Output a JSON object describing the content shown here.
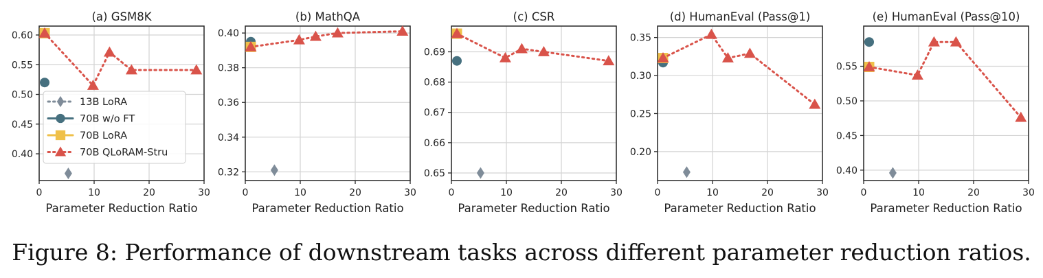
{
  "caption": "Figure 8: Performance of downstream tasks across different parameter reduction ratios.",
  "colors": {
    "13B LoRA": "#7f8c99",
    "70B w/o FT": "#46707f",
    "70B LoRA": "#efc04a",
    "70B QLoRAM-Stru": "#d9534a"
  },
  "legend": {
    "placement": "lower-left of panel (a)",
    "entries": [
      "13B LoRA",
      "70B w/o FT",
      "70B LoRA",
      "70B QLoRAM-Stru"
    ]
  },
  "chart_data": [
    {
      "type": "line",
      "title": "(a) GSM8K",
      "xlabel": "Parameter Reduction Ratio",
      "ylabel": "",
      "xlim": [
        0,
        30
      ],
      "ylim": [
        0.355,
        0.615
      ],
      "xticks": [
        0,
        10,
        20,
        30
      ],
      "yticks": [
        0.4,
        0.45,
        0.5,
        0.55,
        0.6
      ],
      "yfmt": 2,
      "grid": true,
      "series": [
        {
          "name": "13B LoRA",
          "marker": "diamond",
          "points": [
            [
              5.3,
              0.367
            ]
          ]
        },
        {
          "name": "70B w/o FT",
          "marker": "circle",
          "points": [
            [
              1,
              0.52
            ]
          ]
        },
        {
          "name": "70B LoRA",
          "marker": "square",
          "points": [
            [
              1,
              0.603
            ]
          ]
        },
        {
          "name": "70B QLoRAM-Stru",
          "marker": "triangle",
          "points": [
            [
              1,
              0.603
            ],
            [
              9.8,
              0.515
            ],
            [
              12.8,
              0.571
            ],
            [
              16.8,
              0.541
            ],
            [
              28.6,
              0.541
            ]
          ]
        }
      ]
    },
    {
      "type": "line",
      "title": "(b) MathQA",
      "xlabel": "Parameter Reduction Ratio",
      "ylabel": "",
      "xlim": [
        0,
        30
      ],
      "ylim": [
        0.315,
        0.404
      ],
      "xticks": [
        0,
        10,
        20,
        30
      ],
      "yticks": [
        0.32,
        0.34,
        0.36,
        0.38,
        0.4
      ],
      "yfmt": 2,
      "grid": true,
      "series": [
        {
          "name": "13B LoRA",
          "marker": "diamond",
          "points": [
            [
              5.3,
              0.321
            ]
          ]
        },
        {
          "name": "70B w/o FT",
          "marker": "circle",
          "points": [
            [
              1,
              0.395
            ]
          ]
        },
        {
          "name": "70B LoRA",
          "marker": "square",
          "points": [
            [
              1,
              0.392
            ]
          ]
        },
        {
          "name": "70B QLoRAM-Stru",
          "marker": "triangle",
          "points": [
            [
              1,
              0.392
            ],
            [
              9.8,
              0.396
            ],
            [
              12.8,
              0.398
            ],
            [
              16.8,
              0.4
            ],
            [
              28.6,
              0.401
            ]
          ]
        }
      ]
    },
    {
      "type": "line",
      "title": "(c) CSR",
      "xlabel": "Parameter Reduction Ratio",
      "ylabel": "",
      "xlim": [
        0,
        30
      ],
      "ylim": [
        0.6475,
        0.6985
      ],
      "xticks": [
        0,
        10,
        20,
        30
      ],
      "yticks": [
        0.65,
        0.66,
        0.67,
        0.68,
        0.69
      ],
      "yfmt": 2,
      "grid": true,
      "series": [
        {
          "name": "13B LoRA",
          "marker": "diamond",
          "points": [
            [
              5.3,
              0.65
            ]
          ]
        },
        {
          "name": "70B w/o FT",
          "marker": "circle",
          "points": [
            [
              1,
              0.687
            ]
          ]
        },
        {
          "name": "70B LoRA",
          "marker": "square",
          "points": [
            [
              1,
              0.696
            ]
          ]
        },
        {
          "name": "70B QLoRAM-Stru",
          "marker": "triangle",
          "points": [
            [
              1,
              0.696
            ],
            [
              9.8,
              0.688
            ],
            [
              12.8,
              0.691
            ],
            [
              16.8,
              0.69
            ],
            [
              28.6,
              0.687
            ]
          ]
        }
      ]
    },
    {
      "type": "line",
      "title": "(d) HumanEval (Pass@1)",
      "xlabel": "Parameter Reduction Ratio",
      "ylabel": "",
      "xlim": [
        0,
        30
      ],
      "ylim": [
        0.162,
        0.365
      ],
      "xticks": [
        0,
        10,
        20,
        30
      ],
      "yticks": [
        0.2,
        0.25,
        0.3,
        0.35
      ],
      "yfmt": 2,
      "grid": true,
      "series": [
        {
          "name": "13B LoRA",
          "marker": "diamond",
          "points": [
            [
              5.3,
              0.173
            ]
          ]
        },
        {
          "name": "70B w/o FT",
          "marker": "circle",
          "points": [
            [
              1,
              0.317
            ]
          ]
        },
        {
          "name": "70B LoRA",
          "marker": "square",
          "points": [
            [
              1,
              0.323
            ]
          ]
        },
        {
          "name": "70B QLoRAM-Stru",
          "marker": "triangle",
          "points": [
            [
              1,
              0.323
            ],
            [
              9.8,
              0.354
            ],
            [
              12.8,
              0.323
            ],
            [
              16.8,
              0.329
            ],
            [
              28.6,
              0.262
            ]
          ]
        }
      ]
    },
    {
      "type": "line",
      "title": "(e) HumanEval (Pass@10)",
      "xlabel": "Parameter Reduction Ratio",
      "ylabel": "",
      "xlim": [
        0,
        30
      ],
      "ylim": [
        0.385,
        0.608
      ],
      "xticks": [
        0,
        10,
        20,
        30
      ],
      "yticks": [
        0.4,
        0.45,
        0.5,
        0.55
      ],
      "yfmt": 2,
      "grid": true,
      "series": [
        {
          "name": "13B LoRA",
          "marker": "diamond",
          "points": [
            [
              5.3,
              0.396
            ]
          ]
        },
        {
          "name": "70B w/o FT",
          "marker": "circle",
          "points": [
            [
              1,
              0.585
            ]
          ]
        },
        {
          "name": "70B LoRA",
          "marker": "square",
          "points": [
            [
              1,
              0.549
            ]
          ]
        },
        {
          "name": "70B QLoRAM-Stru",
          "marker": "triangle",
          "points": [
            [
              1,
              0.549
            ],
            [
              9.8,
              0.537
            ],
            [
              12.8,
              0.585
            ],
            [
              16.8,
              0.585
            ],
            [
              28.6,
              0.476
            ]
          ]
        }
      ]
    }
  ]
}
